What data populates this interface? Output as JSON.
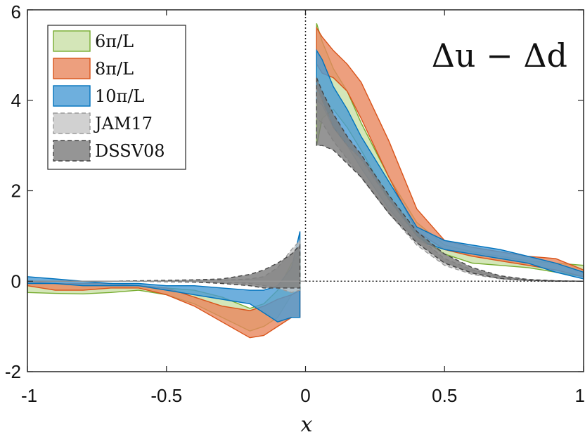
{
  "chart_data": {
    "type": "area",
    "title": "",
    "annotation": "Δu − Δd",
    "xlabel": "x",
    "ylabel": "",
    "xlim": [
      -1,
      1
    ],
    "ylim": [
      -2,
      6
    ],
    "xticks": [
      -1,
      -0.5,
      0,
      0.5,
      1
    ],
    "xtick_labels": [
      "-1",
      "-0.5",
      "0",
      "0.5",
      "1"
    ],
    "yticks": [
      -2,
      0,
      2,
      4,
      6
    ],
    "ytick_labels": [
      "-2",
      "0",
      "2",
      "4",
      "6"
    ],
    "legend_position": "top-left",
    "reference_lines": {
      "x": 0,
      "y": 0,
      "style": "dotted"
    },
    "series": [
      {
        "name": "6π/L",
        "legend": "6π/L",
        "fill": "#c9e0a6",
        "stroke": "#77ac30",
        "dashed": false,
        "left": {
          "x": [
            -1.0,
            -0.9,
            -0.8,
            -0.7,
            -0.6,
            -0.5,
            -0.4,
            -0.3,
            -0.2,
            -0.15,
            -0.1,
            -0.05,
            -0.02
          ],
          "upper": [
            -0.02,
            -0.05,
            -0.05,
            -0.05,
            -0.1,
            -0.15,
            -0.2,
            -0.35,
            -0.6,
            -0.5,
            -0.2,
            0.4,
            0.6
          ],
          "lower": [
            -0.25,
            -0.27,
            -0.28,
            -0.25,
            -0.2,
            -0.3,
            -0.5,
            -0.8,
            -1.1,
            -1.0,
            -0.8,
            -0.3,
            -0.2
          ]
        },
        "right": {
          "x": [
            0.04,
            0.06,
            0.1,
            0.15,
            0.2,
            0.3,
            0.4,
            0.5,
            0.6,
            0.7,
            0.8,
            0.9,
            1.0
          ],
          "upper": [
            5.7,
            5.3,
            4.7,
            4.2,
            3.5,
            2.3,
            1.3,
            0.8,
            0.65,
            0.55,
            0.45,
            0.4,
            0.35
          ],
          "lower": [
            3.0,
            3.6,
            3.8,
            3.4,
            2.9,
            1.8,
            1.0,
            0.6,
            0.4,
            0.35,
            0.3,
            0.2,
            0.1
          ]
        }
      },
      {
        "name": "8π/L",
        "legend": "8π/L",
        "fill": "#e8875e",
        "stroke": "#d95319",
        "dashed": false,
        "left": {
          "x": [
            -1.0,
            -0.9,
            -0.8,
            -0.7,
            -0.6,
            -0.5,
            -0.4,
            -0.3,
            -0.2,
            -0.15,
            -0.1,
            -0.05,
            -0.02
          ],
          "upper": [
            0.0,
            -0.05,
            -0.05,
            -0.05,
            -0.1,
            -0.15,
            -0.35,
            -0.55,
            -0.65,
            -0.55,
            -0.4,
            -0.3,
            -0.2
          ],
          "lower": [
            -0.1,
            -0.2,
            -0.2,
            -0.15,
            -0.15,
            -0.3,
            -0.55,
            -0.9,
            -1.25,
            -1.2,
            -1.0,
            -0.8,
            -0.8
          ]
        },
        "right": {
          "x": [
            0.04,
            0.06,
            0.1,
            0.15,
            0.2,
            0.3,
            0.4,
            0.5,
            0.6,
            0.7,
            0.8,
            0.9,
            1.0
          ],
          "upper": [
            5.6,
            5.4,
            5.1,
            4.8,
            4.4,
            3.1,
            1.6,
            0.9,
            0.75,
            0.65,
            0.55,
            0.5,
            0.25
          ],
          "lower": [
            4.8,
            4.6,
            4.5,
            4.2,
            3.6,
            2.3,
            1.1,
            0.7,
            0.55,
            0.45,
            0.35,
            0.25,
            0.1
          ]
        }
      },
      {
        "name": "10π/L",
        "legend": "10π/L",
        "fill": "#4a9bd4",
        "stroke": "#0072bd",
        "dashed": false,
        "left": {
          "x": [
            -1.0,
            -0.9,
            -0.8,
            -0.7,
            -0.6,
            -0.5,
            -0.4,
            -0.3,
            -0.2,
            -0.15,
            -0.1,
            -0.05,
            -0.02
          ],
          "upper": [
            0.1,
            0.05,
            0.0,
            -0.05,
            -0.05,
            -0.1,
            -0.1,
            -0.15,
            -0.2,
            -0.2,
            -0.1,
            0.3,
            1.1
          ],
          "lower": [
            -0.05,
            -0.05,
            -0.1,
            -0.1,
            -0.1,
            -0.2,
            -0.3,
            -0.4,
            -0.5,
            -0.7,
            -0.9,
            -0.8,
            -0.8
          ]
        },
        "right": {
          "x": [
            0.04,
            0.06,
            0.1,
            0.15,
            0.2,
            0.3,
            0.4,
            0.5,
            0.6,
            0.7,
            0.8,
            0.9,
            1.0
          ],
          "upper": [
            5.1,
            4.9,
            4.3,
            3.8,
            3.2,
            2.2,
            1.2,
            0.9,
            0.8,
            0.7,
            0.55,
            0.4,
            0.2
          ],
          "lower": [
            4.0,
            3.9,
            3.4,
            3.0,
            2.5,
            1.6,
            0.9,
            0.7,
            0.6,
            0.5,
            0.4,
            0.2,
            0.05
          ]
        }
      },
      {
        "name": "JAM17",
        "legend": "JAM17",
        "fill": "#c6c6c6",
        "stroke": "#9a9a9a",
        "dashed": true,
        "left": {
          "x": [
            -1.0,
            -0.9,
            -0.8,
            -0.7,
            -0.6,
            -0.5,
            -0.4,
            -0.3,
            -0.2,
            -0.15,
            -0.1,
            -0.05,
            -0.02
          ],
          "upper": [
            0.0,
            0.0,
            0.0,
            0.0,
            0.0,
            0.0,
            0.0,
            0.02,
            0.05,
            0.1,
            0.3,
            0.7,
            0.9
          ],
          "lower": [
            0.0,
            0.0,
            0.0,
            0.0,
            0.0,
            0.0,
            0.0,
            -0.02,
            -0.05,
            -0.1,
            -0.15,
            -0.25,
            -0.2
          ]
        },
        "right": {
          "x": [
            0.04,
            0.06,
            0.1,
            0.15,
            0.2,
            0.3,
            0.4,
            0.5,
            0.6,
            0.7,
            0.8,
            0.9,
            1.0
          ],
          "upper": [
            4.3,
            4.0,
            3.4,
            3.0,
            2.7,
            1.8,
            1.0,
            0.5,
            0.25,
            0.1,
            0.03,
            0.01,
            0.0
          ],
          "lower": [
            3.6,
            3.5,
            3.1,
            2.7,
            2.3,
            1.5,
            0.8,
            0.35,
            0.15,
            0.05,
            0.01,
            0.0,
            0.0
          ]
        }
      },
      {
        "name": "DSSV08",
        "legend": "DSSV08",
        "fill": "#7a7a7a",
        "stroke": "#444444",
        "dashed": true,
        "left": {
          "x": [
            -1.0,
            -0.9,
            -0.8,
            -0.7,
            -0.6,
            -0.5,
            -0.4,
            -0.3,
            -0.2,
            -0.15,
            -0.1,
            -0.05,
            -0.02
          ],
          "upper": [
            0.0,
            0.0,
            0.0,
            0.0,
            0.01,
            0.02,
            0.03,
            0.05,
            0.15,
            0.25,
            0.4,
            0.6,
            0.8
          ],
          "lower": [
            0.0,
            0.0,
            0.0,
            0.0,
            0.0,
            -0.01,
            -0.02,
            -0.05,
            -0.1,
            -0.15,
            -0.15,
            -0.15,
            -0.15
          ]
        },
        "right": {
          "x": [
            0.04,
            0.06,
            0.1,
            0.15,
            0.2,
            0.3,
            0.4,
            0.5,
            0.6,
            0.7,
            0.8,
            0.9,
            1.0
          ],
          "upper": [
            4.5,
            4.2,
            3.7,
            3.2,
            2.8,
            1.9,
            1.1,
            0.6,
            0.3,
            0.12,
            0.04,
            0.01,
            0.0
          ],
          "lower": [
            3.0,
            3.0,
            2.9,
            2.6,
            2.3,
            1.5,
            0.85,
            0.4,
            0.18,
            0.06,
            0.02,
            0.0,
            0.0
          ]
        }
      }
    ]
  }
}
